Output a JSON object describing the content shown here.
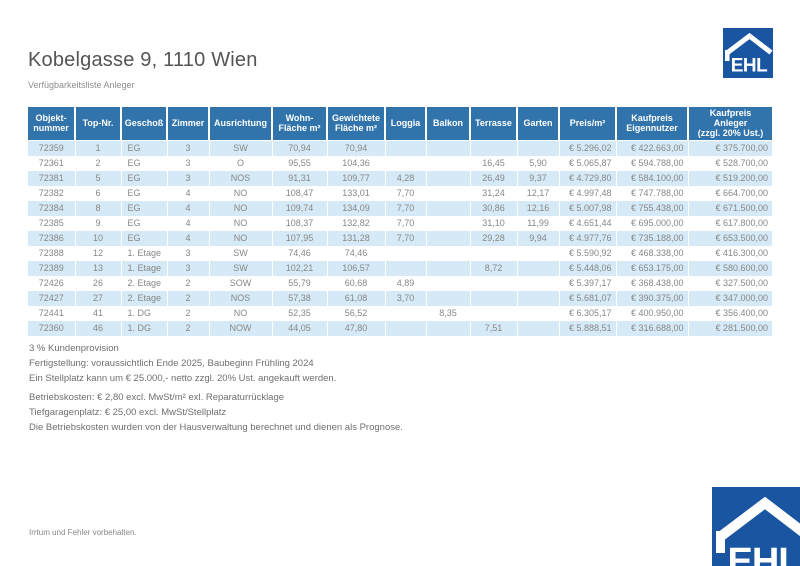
{
  "page": {
    "title": "Kobelgasse 9, 1110 Wien",
    "subtitle": "Verfügbarkeitsliste Anleger",
    "disclaimer": "Irrtum und Fehler vorbehalten."
  },
  "logo": {
    "text": "EHL",
    "blue": "#1a55a2"
  },
  "colors": {
    "header_bg": "#3173ab",
    "row_alt_bg": "#d5eaf6",
    "body_text": "#878787"
  },
  "table": {
    "columns": [
      "Objekt-\nnummer",
      "Top-Nr.",
      "Geschoß",
      "Zimmer",
      "Ausrichtung",
      "Wohn-\nFläche m²",
      "Gewichtete\nFläche m²",
      "Loggia",
      "Balkon",
      "Terrasse",
      "Garten",
      "Preis/m²",
      "Kaufpreis\nEigennutzer",
      "Kaufpreis\nAnleger\n(zzgl. 20% Ust.)"
    ],
    "rows": [
      [
        "72359",
        "1",
        "EG",
        "3",
        "SW",
        "70,94",
        "70,94",
        "",
        "",
        "",
        "",
        "€ 5.296,02",
        "€ 422.663,00",
        "€ 375.700,00"
      ],
      [
        "72361",
        "2",
        "EG",
        "3",
        "O",
        "95,55",
        "104,36",
        "",
        "",
        "16,45",
        "5,90",
        "€ 5.065,87",
        "€ 594.788,00",
        "€ 528.700,00"
      ],
      [
        "72381",
        "5",
        "EG",
        "3",
        "NOS",
        "91,31",
        "109,77",
        "4,28",
        "",
        "26,49",
        "9,37",
        "€ 4.729,80",
        "€ 584.100,00",
        "€ 519.200,00"
      ],
      [
        "72382",
        "6",
        "EG",
        "4",
        "NO",
        "108,47",
        "133,01",
        "7,70",
        "",
        "31,24",
        "12,17",
        "€ 4.997,48",
        "€ 747.788,00",
        "€ 664.700,00"
      ],
      [
        "72384",
        "8",
        "EG",
        "4",
        "NO",
        "109,74",
        "134,09",
        "7,70",
        "",
        "30,86",
        "12,16",
        "€ 5.007,98",
        "€ 755.438,00",
        "€ 671.500,00"
      ],
      [
        "72385",
        "9",
        "EG",
        "4",
        "NO",
        "108,37",
        "132,82",
        "7,70",
        "",
        "31,10",
        "11,99",
        "€ 4.651,44",
        "€ 695.000,00",
        "€ 617.800,00"
      ],
      [
        "72386",
        "10",
        "EG",
        "4",
        "NO",
        "107,95",
        "131,28",
        "7,70",
        "",
        "29,28",
        "9,94",
        "€ 4.977,76",
        "€ 735.188,00",
        "€ 653.500,00"
      ],
      [
        "72388",
        "12",
        "1. Etage",
        "3",
        "SW",
        "74,46",
        "74,46",
        "",
        "",
        "",
        "",
        "€ 5.590,92",
        "€ 468.338,00",
        "€ 416.300,00"
      ],
      [
        "72389",
        "13",
        "1. Etage",
        "3",
        "SW",
        "102,21",
        "106,57",
        "",
        "",
        "8,72",
        "",
        "€ 5.448,06",
        "€ 653.175,00",
        "€ 580.600,00"
      ],
      [
        "72426",
        "26",
        "2. Etage",
        "2",
        "SOW",
        "55,79",
        "60,68",
        "4,89",
        "",
        "",
        "",
        "€ 5.397,17",
        "€ 368.438,00",
        "€ 327.500,00"
      ],
      [
        "72427",
        "27",
        "2. Etage",
        "2",
        "NOS",
        "57,38",
        "61,08",
        "3,70",
        "",
        "",
        "",
        "€ 5.681,07",
        "€ 390.375,00",
        "€ 347.000,00"
      ],
      [
        "72441",
        "41",
        "1. DG",
        "2",
        "NO",
        "52,35",
        "56,52",
        "",
        "8,35",
        "",
        "",
        "€ 6.305,17",
        "€ 400.950,00",
        "€ 356.400,00"
      ],
      [
        "72360",
        "46",
        "1. DG",
        "2",
        "NOW",
        "44,05",
        "47,80",
        "",
        "",
        "7,51",
        "",
        "€ 5.888,51",
        "€ 316.688,00",
        "€ 281.500,00"
      ]
    ]
  },
  "notes": [
    [
      "3 % Kundenprovision",
      "Fertigstellung: voraussichtlich Ende 2025, Baubeginn Frühling 2024",
      "Ein Stellplatz kann um € 25.000,- netto zzgl. 20% Ust. angekauft werden."
    ],
    [
      "Betriebskosten: € 2,80 excl. MwSt/m² exl. Reparaturrücklage",
      "Tiefgaragenplatz: € 25,00 excl. MwSt/Stellplatz",
      "Die Betriebskosten wurden von der Hausverwaltung berechnet und dienen als Prognose."
    ]
  ]
}
